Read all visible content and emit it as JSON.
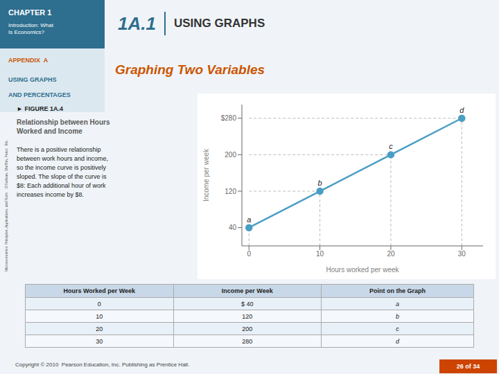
{
  "chart_data": {
    "type": "line",
    "title": "Graphing Two Variables",
    "x": [
      0,
      10,
      20,
      30
    ],
    "values": [
      40,
      120,
      200,
      280
    ],
    "xlabel": "Hours worked per week",
    "ylabel": "Income per week",
    "xlim": [
      -1,
      33
    ],
    "ylim": [
      0,
      310
    ],
    "xticks": [
      0,
      10,
      20,
      30
    ],
    "yticks": [
      40,
      120,
      200,
      {
        "value": 280,
        "label": "$280"
      }
    ],
    "color": "#4a9ec4",
    "marker": "circle",
    "grid": false,
    "annotations": [
      {
        "x": 0,
        "y": 40,
        "text": "a"
      },
      {
        "x": 10,
        "y": 120,
        "text": "b"
      },
      {
        "x": 20,
        "y": 200,
        "text": "c"
      },
      {
        "x": 30,
        "y": 280,
        "text": "d"
      }
    ],
    "page_texts": {
      "chapter": "CHAPTER 1",
      "chapter_sub": "Introduction: What\nIs Economics?",
      "section": "1A.1",
      "section_sub": "USING GRAPHS",
      "appendix": "APPENDIX  A",
      "appendix_sub1": "USING GRAPHS",
      "appendix_sub2": "AND PERCENTAGES",
      "sidebar": "Microeconomics: Principles, Applications, and Tools    O'Sullivan, Sheffrin, Perez   6/e.",
      "figure_label": "► FIGURE 1A.4",
      "figure_title": "Relationship between Hours\nWorked and Income",
      "figure_text": "There is a positive relationship\nbetween work hours and income,\nso the income curve is positively\nsloped. The slope of the curve is\n$8: Each additional hour of work\nincreases income by $8.",
      "footer": "Copyright © 2010  Pearson Education, Inc. Publishing as Prentice Hall.",
      "page_number": "26 of 34"
    },
    "table": {
      "headers": [
        "Hours Worked per Week",
        "Income per Week",
        "Point on the Graph"
      ],
      "rows": [
        [
          "0",
          "$ 40",
          "a"
        ],
        [
          "10",
          "120",
          "b"
        ],
        [
          "20",
          "200",
          "c"
        ],
        [
          "30",
          "280",
          "d"
        ]
      ]
    }
  }
}
